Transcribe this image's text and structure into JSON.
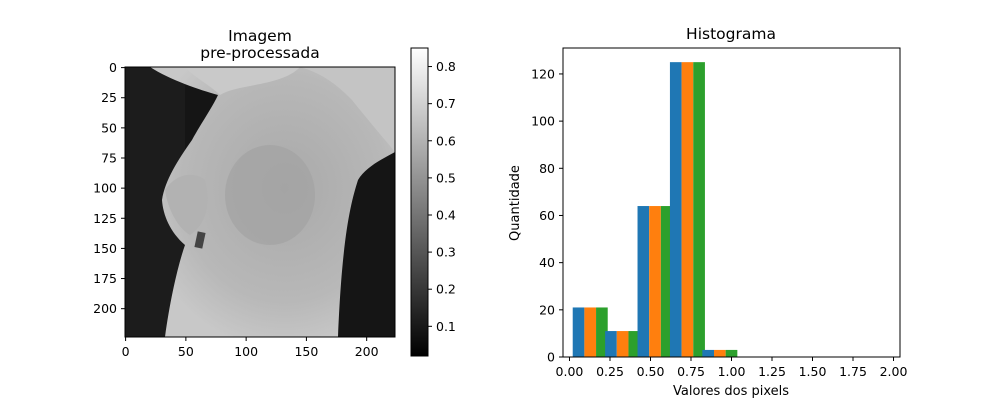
{
  "figure": {
    "image_panel": {
      "title_line1": "Imagem",
      "title_line2": "pre-processada",
      "x_ticks": [
        "0",
        "50",
        "100",
        "150",
        "200"
      ],
      "y_ticks": [
        "0",
        "25",
        "50",
        "75",
        "100",
        "125",
        "150",
        "175",
        "200"
      ],
      "colormap": "gray",
      "image_size": [
        224,
        224
      ],
      "image_description": "grayscale thermal image of a torso"
    },
    "colorbar": {
      "ticks": [
        "0.1",
        "0.2",
        "0.3",
        "0.4",
        "0.5",
        "0.6",
        "0.7",
        "0.8"
      ],
      "range": [
        0.02,
        0.85
      ],
      "colormap": "gray"
    }
  },
  "chart_data": {
    "type": "bar",
    "title": "Histograma",
    "xlabel": "Valores dos pixels",
    "ylabel": "Quantidade",
    "xlim": [
      -0.04,
      2.04
    ],
    "ylim": [
      0,
      131
    ],
    "x_ticks": [
      "0.00",
      "0.25",
      "0.50",
      "0.75",
      "1.00",
      "1.25",
      "1.50",
      "1.75",
      "2.00"
    ],
    "y_ticks": [
      "0",
      "20",
      "40",
      "60",
      "80",
      "100",
      "120"
    ],
    "bin_starts": [
      0.05,
      0.25,
      0.45,
      0.65,
      0.85
    ],
    "series": [
      {
        "color": "#1f77b4",
        "values": [
          21,
          11,
          64,
          125,
          3
        ]
      },
      {
        "color": "#ff7f0e",
        "values": [
          21,
          11,
          64,
          125,
          3
        ]
      },
      {
        "color": "#2ca02c",
        "values": [
          21,
          11,
          64,
          125,
          3
        ]
      }
    ]
  }
}
